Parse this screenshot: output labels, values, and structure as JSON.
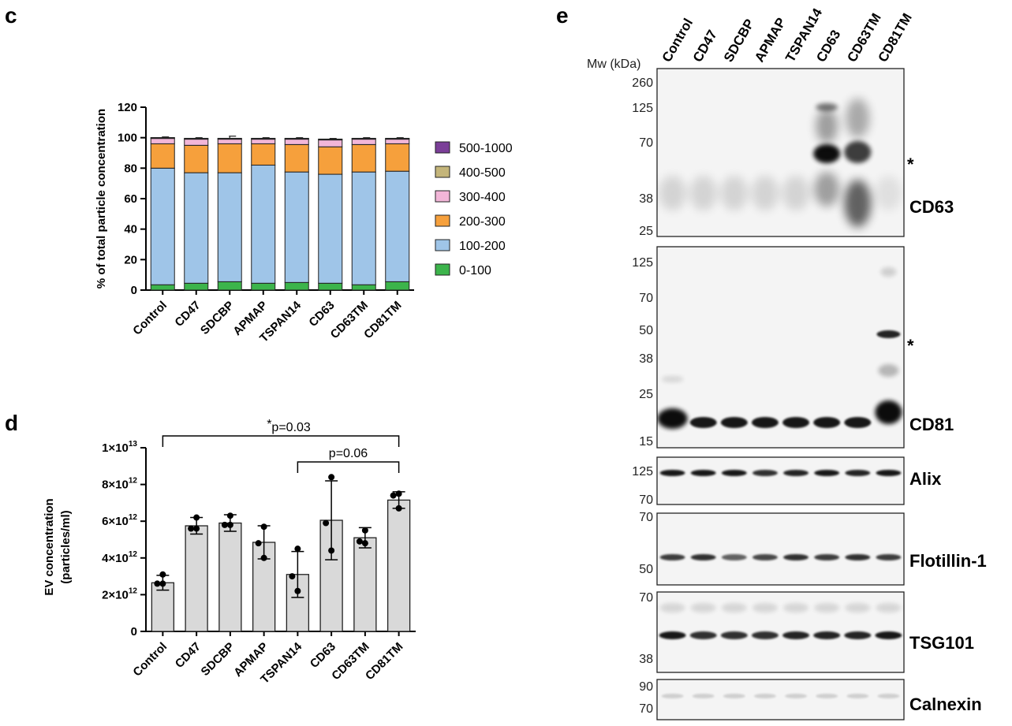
{
  "panels": {
    "c": "c",
    "d": "d",
    "e": "e"
  },
  "chart_data": [
    {
      "type": "bar",
      "stacked": true,
      "panel": "c",
      "categories": [
        "Control",
        "CD47",
        "SDCBP",
        "APMAP",
        "TSPAN14",
        "CD63",
        "CD63TM",
        "CD81TM"
      ],
      "ylabel": "% of total particle concentration",
      "ylim": [
        0,
        120
      ],
      "yticks": [
        0,
        20,
        40,
        60,
        80,
        100,
        120
      ],
      "legend_position": "right",
      "series": [
        {
          "name": "0-100",
          "color": "#3cb44b",
          "values": [
            3.5,
            4.5,
            5.5,
            4.5,
            5,
            4.5,
            3.5,
            5.5
          ],
          "err": [
            3.5,
            7,
            8.5,
            3.5,
            0,
            7,
            2.5,
            7.5
          ]
        },
        {
          "name": "100-200",
          "color": "#9fc5e8",
          "values": [
            76.5,
            72.5,
            71.5,
            77.5,
            72.5,
            71.5,
            74,
            72.5
          ],
          "err": [
            0,
            3,
            4.5,
            3,
            8.5,
            2,
            4.5,
            2
          ]
        },
        {
          "name": "200-300",
          "color": "#f6a03c",
          "values": [
            16,
            18,
            19,
            14,
            18,
            18,
            18,
            18
          ],
          "err": [
            0,
            0,
            0,
            0,
            0,
            0,
            0,
            0
          ]
        },
        {
          "name": "300-400",
          "color": "#f2b6d8",
          "values": [
            3.5,
            4,
            3,
            3,
            3.5,
            4.5,
            3.5,
            3
          ],
          "err": [
            1,
            1,
            2,
            1,
            1,
            1,
            1,
            1
          ]
        },
        {
          "name": "400-500",
          "color": "#c4b57a",
          "values": [
            0.4,
            0.4,
            0.4,
            0.4,
            0.4,
            0.4,
            0.4,
            0.4
          ],
          "err": [
            0,
            0,
            0,
            0,
            0,
            0,
            0,
            0
          ]
        },
        {
          "name": "500-1000",
          "color": "#7b3f98",
          "values": [
            0.2,
            0.2,
            0.2,
            0.2,
            0.2,
            0.2,
            0.2,
            0.2
          ],
          "err": [
            0,
            0,
            0,
            0,
            0,
            0,
            0,
            0
          ]
        }
      ]
    },
    {
      "type": "bar",
      "panel": "d",
      "categories": [
        "Control",
        "CD47",
        "SDCBP",
        "APMAP",
        "TSPAN14",
        "CD63",
        "CD63TM",
        "CD81TM"
      ],
      "ylabel": [
        "EV concentration",
        "(particles/ml)"
      ],
      "ylim": [
        0,
        10000000000000.0
      ],
      "yticks": [
        0,
        2000000000000.0,
        4000000000000.0,
        6000000000000.0,
        8000000000000.0,
        10000000000000.0
      ],
      "ytick_labels": [
        "0",
        "2×10",
        "4×10",
        "6×10",
        "8×10",
        "1×10"
      ],
      "ytick_exponents": [
        "",
        "12",
        "12",
        "12",
        "12",
        "13"
      ],
      "bar_color": "#d9d9d9",
      "values": [
        2650000000000.0,
        5750000000000.0,
        5900000000000.0,
        4850000000000.0,
        3100000000000.0,
        6050000000000.0,
        5100000000000.0,
        7150000000000.0
      ],
      "sd": [
        400000000000.0,
        450000000000.0,
        450000000000.0,
        900000000000.0,
        1250000000000.0,
        2150000000000.0,
        550000000000.0,
        450000000000.0
      ],
      "points": [
        [
          3100000000000.0,
          2600000000000.0,
          2600000000000.0
        ],
        [
          6200000000000.0,
          5600000000000.0,
          5600000000000.0
        ],
        [
          6300000000000.0,
          5800000000000.0,
          5800000000000.0
        ],
        [
          5700000000000.0,
          4800000000000.0,
          4000000000000.0
        ],
        [
          4500000000000.0,
          3000000000000.0,
          2200000000000.0
        ],
        [
          8400000000000.0,
          5900000000000.0,
          4400000000000.0
        ],
        [
          5500000000000.0,
          4900000000000.0,
          4800000000000.0
        ],
        [
          7500000000000.0,
          7400000000000.0,
          6700000000000.0
        ]
      ],
      "brackets": [
        {
          "from": "Control",
          "to": "CD81TM",
          "star": "*",
          "label": "p=0.03"
        },
        {
          "from": "TSPAN14",
          "to": "CD81TM",
          "star": "",
          "label": "p=0.06"
        }
      ]
    }
  ],
  "blot": {
    "lanes": [
      "Control",
      "CD47",
      "SDCBP",
      "APMAP",
      "TSPAN14",
      "CD63",
      "CD63TM",
      "CD81TM"
    ],
    "mw_header": "Mw (kDa)",
    "panels": [
      {
        "name": "CD63",
        "mw": [
          "260",
          "125",
          "70",
          "38",
          "25"
        ],
        "star": "*"
      },
      {
        "name": "CD81",
        "mw": [
          "125",
          "70",
          "50",
          "38",
          "25",
          "15"
        ],
        "star": "*"
      },
      {
        "name": "Alix",
        "mw": [
          "125",
          "70"
        ],
        "star": ""
      },
      {
        "name": "Flotillin-1",
        "mw": [
          "70",
          "50"
        ],
        "star": ""
      },
      {
        "name": "TSG101",
        "mw": [
          "70",
          "38"
        ],
        "star": ""
      },
      {
        "name": "Calnexin",
        "mw": [
          "90",
          "70"
        ],
        "star": ""
      }
    ]
  }
}
